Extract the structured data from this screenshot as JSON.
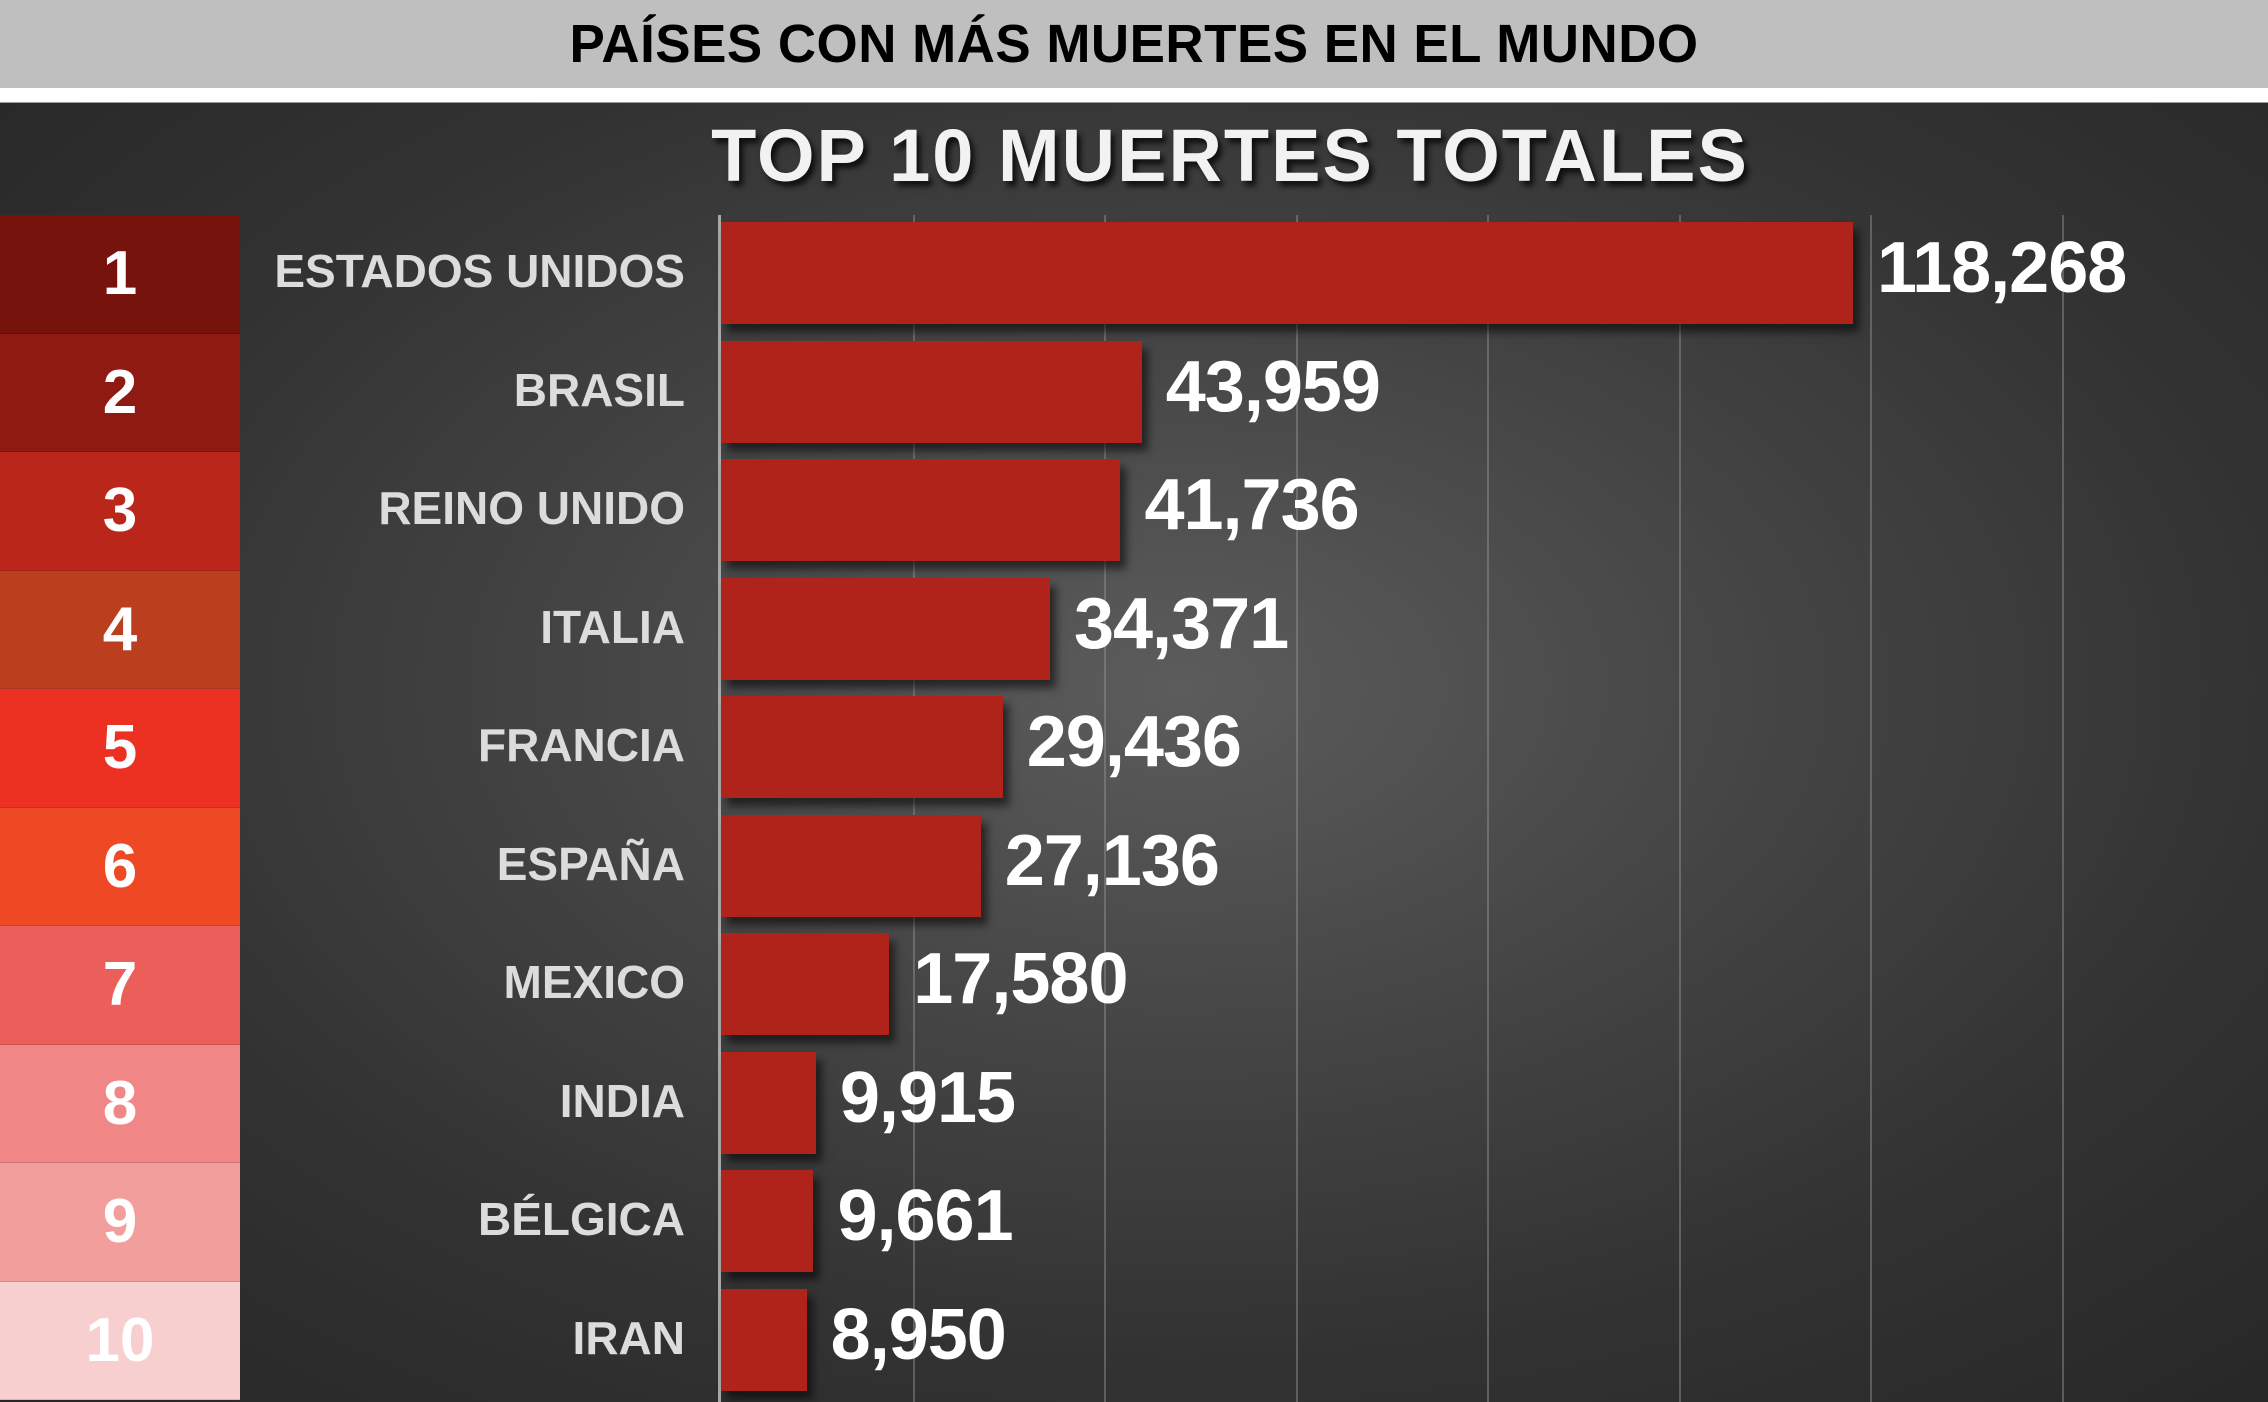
{
  "header": {
    "title": "PAÍSES CON MÁS MUERTES EN EL MUNDO"
  },
  "chart_data": {
    "type": "bar",
    "orientation": "horizontal",
    "title": "TOP 10 MUERTES TOTALES",
    "xlabel": "",
    "ylabel": "",
    "categories": [
      "ESTADOS UNIDOS",
      "BRASIL",
      "REINO UNIDO",
      "ITALIA",
      "FRANCIA",
      "ESPAÑA",
      "MEXICO",
      "INDIA",
      "BÉLGICA",
      "IRAN"
    ],
    "values": [
      118268,
      43959,
      41736,
      34371,
      29436,
      27136,
      17580,
      9915,
      9661,
      8950
    ],
    "value_labels": [
      "118,268",
      "43,959",
      "41,736",
      "34,371",
      "29,436",
      "27,136",
      "17,580",
      "9,915",
      "9,661",
      "8,950"
    ],
    "ranks": [
      "1",
      "2",
      "3",
      "4",
      "5",
      "6",
      "7",
      "8",
      "9",
      "10"
    ],
    "xlim": [
      0,
      160000
    ],
    "gridline_step": 20000,
    "grid": true,
    "tick_labels_visible": false,
    "legend": "none",
    "bar_color": "#b0231a"
  },
  "rank_colors": [
    "#76130c",
    "#8e1a11",
    "#bb261b",
    "#bb3f1f",
    "#ec3123",
    "#ee4824",
    "#ec5e5a",
    "#f08686",
    "#f29e9d",
    "#f7cfce"
  ],
  "rank_text_colors": [
    "#ffffff",
    "#ffffff",
    "#ffffff",
    "#ffffff",
    "#ffffff",
    "#ffffff",
    "#ffffff",
    "#ffffff",
    "#ffffff",
    "#ffffff"
  ]
}
